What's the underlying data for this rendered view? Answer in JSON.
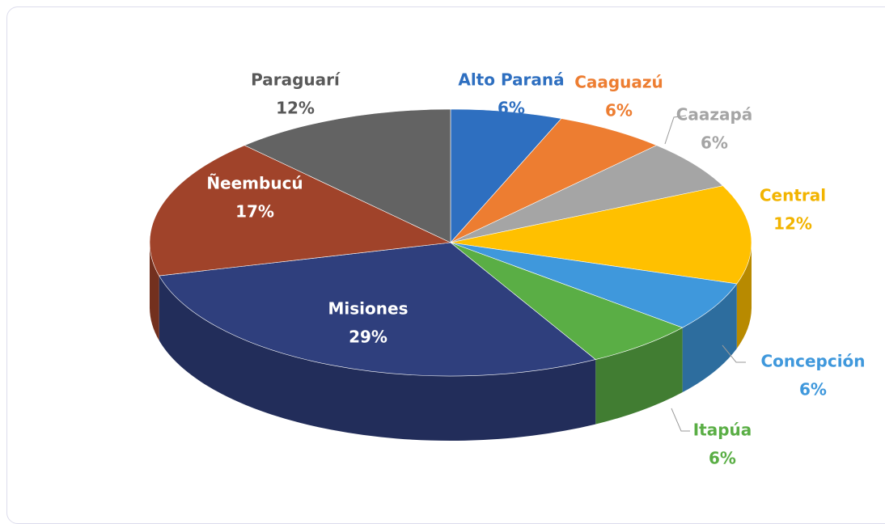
{
  "chart_data": {
    "type": "pie",
    "categories": [
      "Alto Paraná",
      "Caaguazú",
      "Caazapá",
      "Central",
      "Concepción",
      "Itapúa",
      "Misiones",
      "Ñeembucú",
      "Paraguarí"
    ],
    "values": [
      6,
      6,
      6,
      12,
      6,
      6,
      29,
      17,
      12
    ],
    "value_labels": [
      "6%",
      "6%",
      "6%",
      "12%",
      "6%",
      "6%",
      "29%",
      "17%",
      "12%"
    ],
    "colors": [
      "#2e6fc0",
      "#ed7d31",
      "#a5a5a5",
      "#ffc000",
      "#3f98dc",
      "#5aae45",
      "#2f3f7d",
      "#a0432a",
      "#636363"
    ]
  }
}
